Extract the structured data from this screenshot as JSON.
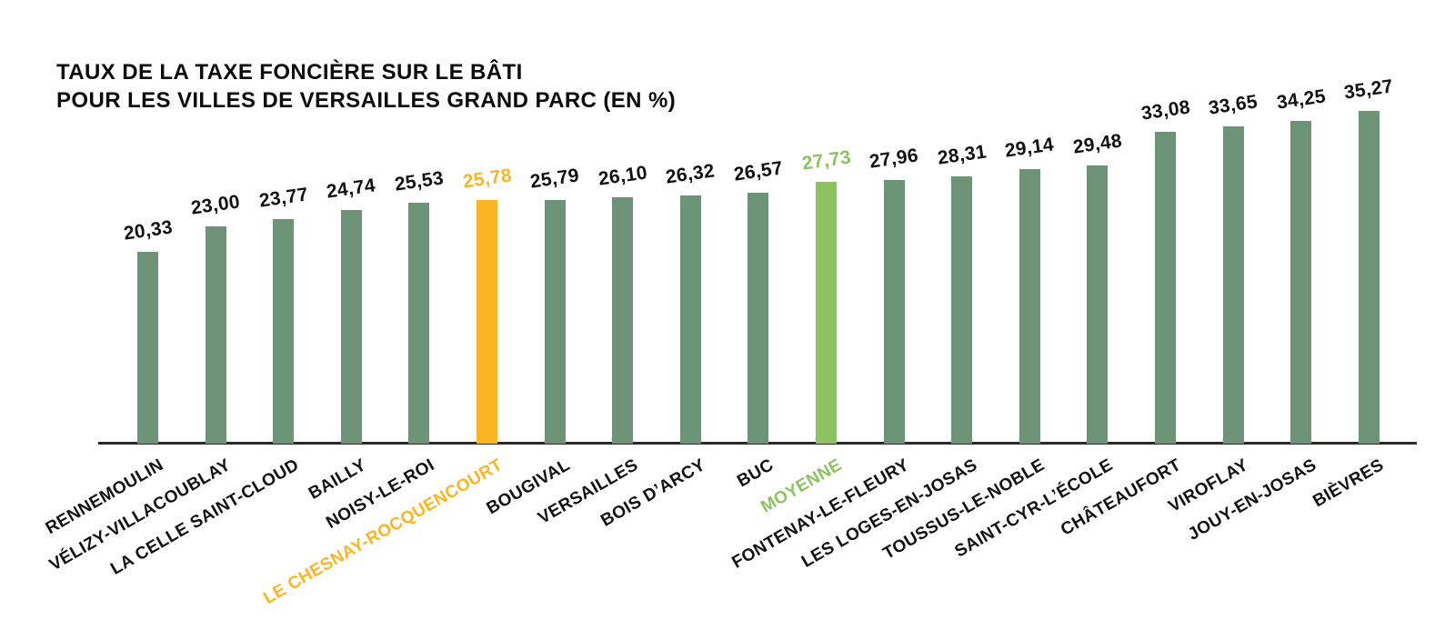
{
  "page": {
    "background": "#ffffff"
  },
  "chart_data": {
    "type": "bar",
    "title_line1": "TAUX DE LA TAXE FONCIÈRE SUR LE BÂTI",
    "title_line2": "POUR LES VILLES DE VERSAILLES GRAND PARC (EN %)",
    "unit": "%",
    "ylim": [
      0,
      36
    ],
    "grid": false,
    "legend": "none",
    "y_axis_visible": false,
    "x_axis_line": true,
    "value_label_decimal_separator": ",",
    "colors": {
      "bar_default": "#6E9478",
      "bar_highlight_city": "#FBB522",
      "bar_highlight_average": "#8CC35F",
      "label_text": "#111111",
      "axis_line": "#2B2B2B"
    },
    "categories": [
      "RENNEMOULIN",
      "VÉLIZY-VILLACOUBLAY",
      "LA CELLE SAINT-CLOUD",
      "BAILLY",
      "NOISY-LE-ROI",
      "LE CHESNAY-ROCQUENCOURT",
      "BOUGIVAL",
      "VERSAILLES",
      "BOIS D’ARCY",
      "BUC",
      "MOYENNE",
      "FONTENAY-LE-FLEURY",
      "LES LOGES-EN-JOSAS",
      "TOUSSUS-LE-NOBLE",
      "SAINT-CYR-L’ÉCOLE",
      "CHÂTEAUFORT",
      "VIROFLAY",
      "JOUY-EN-JOSAS",
      "BIÈVRES"
    ],
    "values": [
      20.33,
      23.0,
      23.77,
      24.74,
      25.53,
      25.78,
      25.79,
      26.1,
      26.32,
      26.57,
      27.73,
      27.96,
      28.31,
      29.14,
      29.48,
      33.08,
      33.65,
      34.25,
      35.27
    ],
    "bars": [
      {
        "label": "RENNEMOULIN",
        "value": 20.33,
        "display": "20,33",
        "color_key": "bar_default"
      },
      {
        "label": "VÉLIZY-VILLACOUBLAY",
        "value": 23.0,
        "display": "23,00",
        "color_key": "bar_default"
      },
      {
        "label": "LA CELLE SAINT-CLOUD",
        "value": 23.77,
        "display": "23,77",
        "color_key": "bar_default"
      },
      {
        "label": "BAILLY",
        "value": 24.74,
        "display": "24,74",
        "color_key": "bar_default"
      },
      {
        "label": "NOISY-LE-ROI",
        "value": 25.53,
        "display": "25,53",
        "color_key": "bar_default"
      },
      {
        "label": "LE CHESNAY-ROCQUENCOURT",
        "value": 25.78,
        "display": "25,78",
        "color_key": "bar_highlight_city"
      },
      {
        "label": "BOUGIVAL",
        "value": 25.79,
        "display": "25,79",
        "color_key": "bar_default"
      },
      {
        "label": "VERSAILLES",
        "value": 26.1,
        "display": "26,10",
        "color_key": "bar_default"
      },
      {
        "label": "BOIS D’ARCY",
        "value": 26.32,
        "display": "26,32",
        "color_key": "bar_default"
      },
      {
        "label": "BUC",
        "value": 26.57,
        "display": "26,57",
        "color_key": "bar_default"
      },
      {
        "label": "MOYENNE",
        "value": 27.73,
        "display": "27,73",
        "color_key": "bar_highlight_average"
      },
      {
        "label": "FONTENAY-LE-FLEURY",
        "value": 27.96,
        "display": "27,96",
        "color_key": "bar_default"
      },
      {
        "label": "LES LOGES-EN-JOSAS",
        "value": 28.31,
        "display": "28,31",
        "color_key": "bar_default"
      },
      {
        "label": "TOUSSUS-LE-NOBLE",
        "value": 29.14,
        "display": "29,14",
        "color_key": "bar_default"
      },
      {
        "label": "SAINT-CYR-L’ÉCOLE",
        "value": 29.48,
        "display": "29,48",
        "color_key": "bar_default"
      },
      {
        "label": "CHÂTEAUFORT",
        "value": 33.08,
        "display": "33,08",
        "color_key": "bar_default"
      },
      {
        "label": "VIROFLAY",
        "value": 33.65,
        "display": "33,65",
        "color_key": "bar_default"
      },
      {
        "label": "JOUY-EN-JOSAS",
        "value": 34.25,
        "display": "34,25",
        "color_key": "bar_default"
      },
      {
        "label": "BIÈVRES",
        "value": 35.27,
        "display": "35,27",
        "color_key": "bar_default"
      }
    ]
  }
}
